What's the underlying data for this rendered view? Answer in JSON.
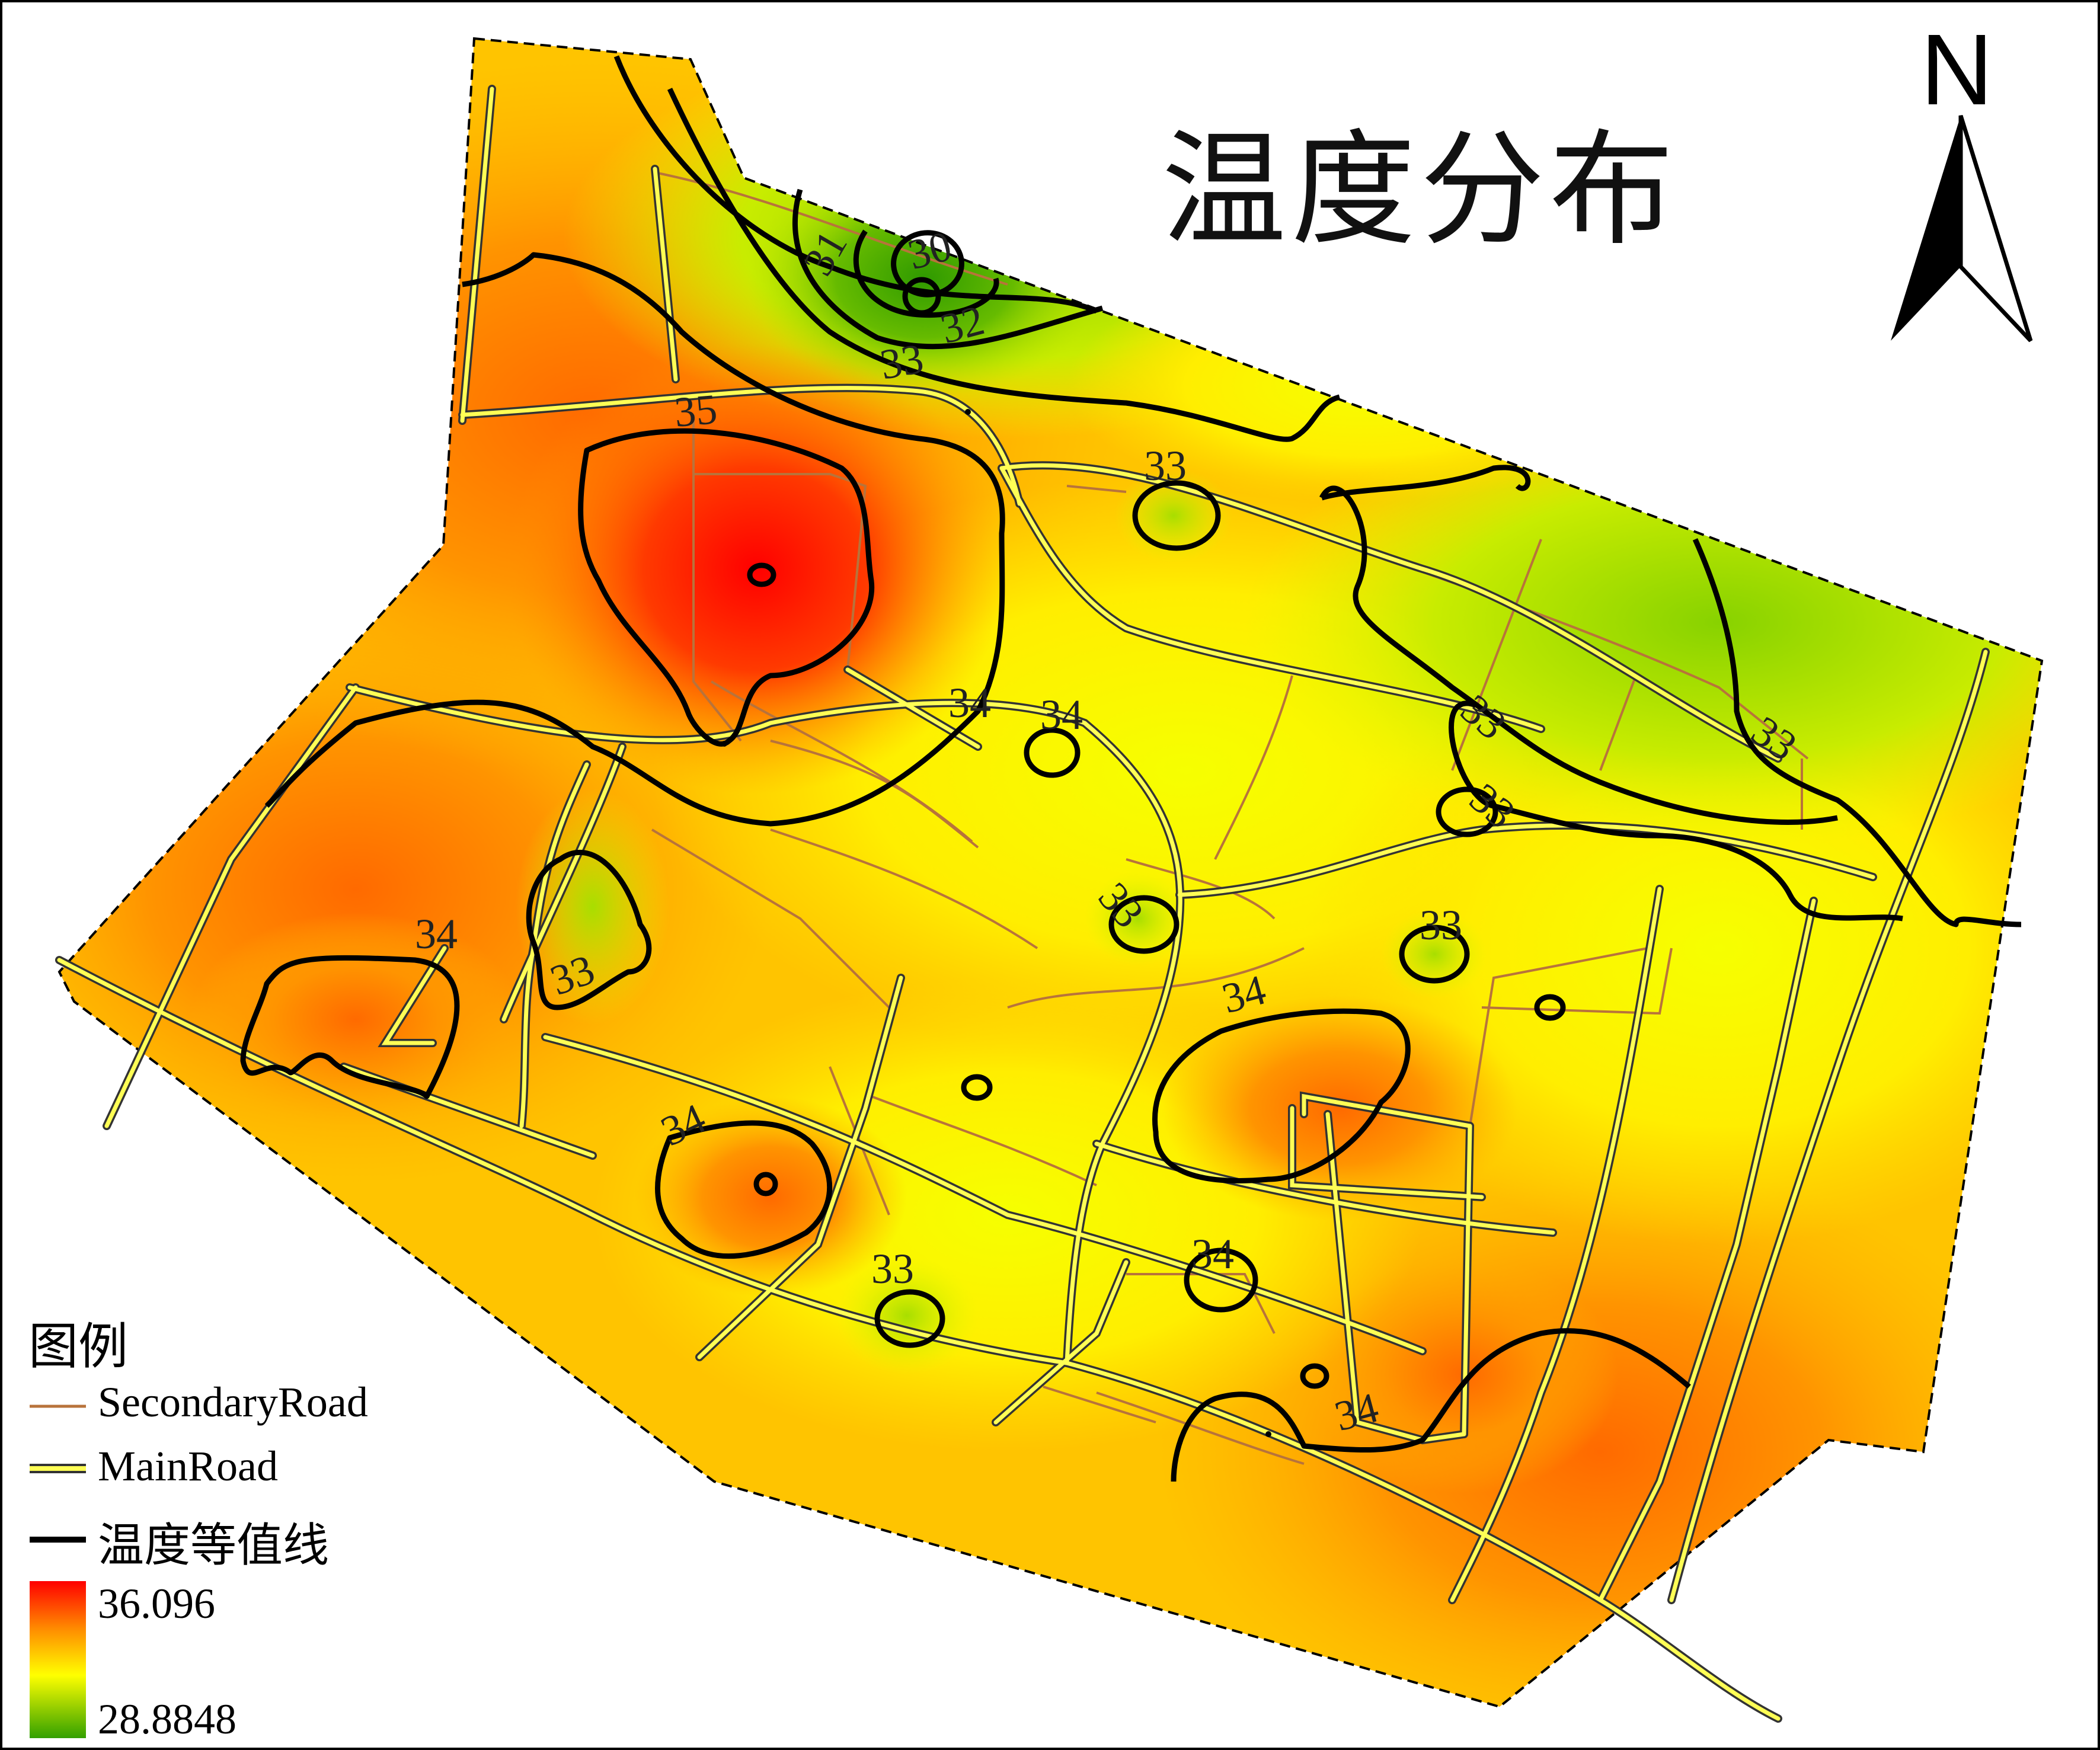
{
  "title": "温度分布",
  "north_arrow": {
    "letter": "N",
    "icon": "north-arrow-icon"
  },
  "legend": {
    "title": "图例",
    "secondary_road": "SecondaryRoad",
    "main_road": "MainRoad",
    "isotherm": "温度等值线",
    "max": "36.096",
    "min": "28.8848"
  },
  "colors": {
    "hot": "#ff1a00",
    "warm": "#ff9a00",
    "mid": "#ffee00",
    "cool": "#9fdc00",
    "cold": "#3f9e00",
    "secondary_road": "#b8733b",
    "main_road": "#ffff40",
    "contour": "#000000"
  },
  "contour_labels": [
    "30",
    "31",
    "32",
    "33",
    "35",
    "33",
    "34",
    "34",
    "33",
    "33",
    "33",
    "33",
    "34",
    "34",
    "34",
    "33",
    "34",
    "34",
    "33",
    "33"
  ]
}
